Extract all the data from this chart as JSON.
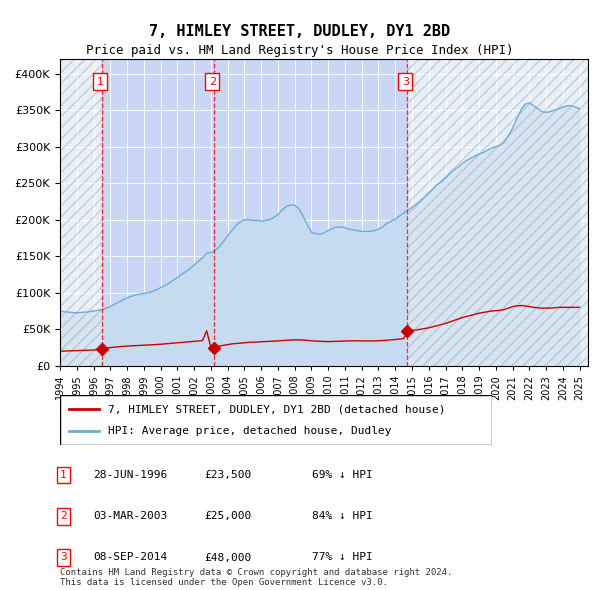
{
  "title": "7, HIMLEY STREET, DUDLEY, DY1 2BD",
  "subtitle": "Price paid vs. HM Land Registry's House Price Index (HPI)",
  "ylabel_ticks": [
    "£0",
    "£50K",
    "£100K",
    "£150K",
    "£200K",
    "£250K",
    "£300K",
    "£350K",
    "£400K"
  ],
  "ytick_values": [
    0,
    50000,
    100000,
    150000,
    200000,
    250000,
    300000,
    350000,
    400000
  ],
  "ylim": [
    0,
    420000
  ],
  "xlim_start": 1994.0,
  "xlim_end": 2025.5,
  "hpi_color": "#6baed6",
  "hpi_fill_color": "#c6dbef",
  "price_color": "#cc0000",
  "marker_color": "#cc0000",
  "dashed_line_color": "#ff0000",
  "background_color": "#dce9f5",
  "plot_bg_color": "#dce9f5",
  "legend_box_color": "#ffffff",
  "transaction_dates": [
    1996.49,
    2003.17,
    2014.69
  ],
  "transaction_prices": [
    23500,
    25000,
    48000
  ],
  "transaction_labels": [
    "1",
    "2",
    "3"
  ],
  "legend_line1": "7, HIMLEY STREET, DUDLEY, DY1 2BD (detached house)",
  "legend_line2": "HPI: Average price, detached house, Dudley",
  "table_rows": [
    [
      "1",
      "28-JUN-1996",
      "£23,500",
      "69% ↓ HPI"
    ],
    [
      "2",
      "03-MAR-2003",
      "£25,000",
      "84% ↓ HPI"
    ],
    [
      "3",
      "08-SEP-2014",
      "£48,000",
      "77% ↓ HPI"
    ]
  ],
  "footnote": "Contains HM Land Registry data © Crown copyright and database right 2024.\nThis data is licensed under the Open Government Licence v3.0.",
  "hpi_x": [
    1994.0,
    1994.25,
    1994.5,
    1994.75,
    1995.0,
    1995.25,
    1995.5,
    1995.75,
    1996.0,
    1996.25,
    1996.5,
    1996.75,
    1997.0,
    1997.25,
    1997.5,
    1997.75,
    1998.0,
    1998.25,
    1998.5,
    1998.75,
    1999.0,
    1999.25,
    1999.5,
    1999.75,
    2000.0,
    2000.25,
    2000.5,
    2000.75,
    2001.0,
    2001.25,
    2001.5,
    2001.75,
    2002.0,
    2002.25,
    2002.5,
    2002.75,
    2003.0,
    2003.25,
    2003.5,
    2003.75,
    2004.0,
    2004.25,
    2004.5,
    2004.75,
    2005.0,
    2005.25,
    2005.5,
    2005.75,
    2006.0,
    2006.25,
    2006.5,
    2006.75,
    2007.0,
    2007.25,
    2007.5,
    2007.75,
    2008.0,
    2008.25,
    2008.5,
    2008.75,
    2009.0,
    2009.25,
    2009.5,
    2009.75,
    2010.0,
    2010.25,
    2010.5,
    2010.75,
    2011.0,
    2011.25,
    2011.5,
    2011.75,
    2012.0,
    2012.25,
    2012.5,
    2012.75,
    2013.0,
    2013.25,
    2013.5,
    2013.75,
    2014.0,
    2014.25,
    2014.5,
    2014.75,
    2015.0,
    2015.25,
    2015.5,
    2015.75,
    2016.0,
    2016.25,
    2016.5,
    2016.75,
    2017.0,
    2017.25,
    2017.5,
    2017.75,
    2018.0,
    2018.25,
    2018.5,
    2018.75,
    2019.0,
    2019.25,
    2019.5,
    2019.75,
    2020.0,
    2020.25,
    2020.5,
    2020.75,
    2021.0,
    2021.25,
    2021.5,
    2021.75,
    2022.0,
    2022.25,
    2022.5,
    2022.75,
    2023.0,
    2023.25,
    2023.5,
    2023.75,
    2024.0,
    2024.25,
    2024.5,
    2024.75,
    2025.0
  ],
  "hpi_y": [
    75000,
    74000,
    73500,
    73000,
    72500,
    73000,
    73500,
    74000,
    75000,
    76000,
    77000,
    79000,
    81000,
    84000,
    87000,
    90000,
    93000,
    95000,
    97000,
    98000,
    99000,
    100000,
    102000,
    104000,
    107000,
    110000,
    113000,
    117000,
    121000,
    125000,
    129000,
    133000,
    138000,
    143000,
    148000,
    154000,
    155000,
    158000,
    163000,
    170000,
    178000,
    185000,
    192000,
    197000,
    200000,
    200000,
    199000,
    199000,
    198000,
    199000,
    200000,
    203000,
    207000,
    213000,
    218000,
    220000,
    220000,
    215000,
    205000,
    193000,
    183000,
    181000,
    180000,
    182000,
    185000,
    188000,
    190000,
    190000,
    189000,
    187000,
    186000,
    185000,
    184000,
    184000,
    184000,
    185000,
    187000,
    190000,
    195000,
    198000,
    201000,
    205000,
    209000,
    213000,
    217000,
    221000,
    226000,
    231000,
    237000,
    242000,
    248000,
    252000,
    257000,
    263000,
    268000,
    272000,
    277000,
    281000,
    284000,
    287000,
    290000,
    292000,
    295000,
    298000,
    300000,
    302000,
    306000,
    315000,
    325000,
    338000,
    350000,
    358000,
    360000,
    356000,
    352000,
    348000,
    347000,
    348000,
    350000,
    352000,
    354000,
    356000,
    356000,
    354000,
    352000
  ],
  "price_x": [
    1994.0,
    1994.25,
    1994.5,
    1994.75,
    1995.0,
    1995.25,
    1995.5,
    1995.75,
    1996.0,
    1996.25,
    1996.5,
    1996.75,
    1997.0,
    1997.25,
    1997.5,
    1997.75,
    1998.0,
    1998.25,
    1998.5,
    1998.75,
    1999.0,
    1999.25,
    1999.5,
    1999.75,
    2000.0,
    2000.25,
    2000.5,
    2000.75,
    2001.0,
    2001.25,
    2001.5,
    2001.75,
    2002.0,
    2002.25,
    2002.5,
    2002.75,
    2003.0,
    2003.25,
    2003.5,
    2003.75,
    2004.0,
    2004.25,
    2004.5,
    2004.75,
    2005.0,
    2005.25,
    2005.5,
    2005.75,
    2006.0,
    2006.25,
    2006.5,
    2006.75,
    2007.0,
    2007.25,
    2007.5,
    2007.75,
    2008.0,
    2008.25,
    2008.5,
    2008.75,
    2009.0,
    2009.25,
    2009.5,
    2009.75,
    2010.0,
    2010.25,
    2010.5,
    2010.75,
    2011.0,
    2011.25,
    2011.5,
    2011.75,
    2012.0,
    2012.25,
    2012.5,
    2012.75,
    2013.0,
    2013.25,
    2013.5,
    2013.75,
    2014.0,
    2014.25,
    2014.5,
    2014.75,
    2015.0,
    2015.25,
    2015.5,
    2015.75,
    2016.0,
    2016.25,
    2016.5,
    2016.75,
    2017.0,
    2017.25,
    2017.5,
    2017.75,
    2018.0,
    2018.25,
    2018.5,
    2018.75,
    2019.0,
    2019.25,
    2019.5,
    2019.75,
    2020.0,
    2020.25,
    2020.5,
    2020.75,
    2021.0,
    2021.25,
    2021.5,
    2021.75,
    2022.0,
    2022.25,
    2022.5,
    2022.75,
    2023.0,
    2023.25,
    2023.5,
    2023.75,
    2024.0,
    2024.25,
    2024.5,
    2024.75,
    2025.0
  ],
  "price_y": [
    20000,
    20200,
    20400,
    20600,
    20800,
    21000,
    21200,
    21400,
    21600,
    22000,
    23500,
    24000,
    25000,
    25500,
    26000,
    26500,
    27000,
    27300,
    27600,
    27900,
    28200,
    28500,
    28800,
    29100,
    29500,
    30000,
    30500,
    31000,
    31500,
    32000,
    32500,
    33000,
    33500,
    34000,
    34500,
    48000,
    25000,
    26000,
    27000,
    28000,
    29000,
    30000,
    30500,
    31000,
    31500,
    32000,
    32300,
    32600,
    32900,
    33200,
    33500,
    33800,
    34100,
    34500,
    34900,
    35300,
    35500,
    35500,
    35300,
    34800,
    34200,
    33800,
    33500,
    33300,
    33200,
    33300,
    33500,
    33700,
    33900,
    34100,
    34200,
    34200,
    34100,
    34000,
    34000,
    34100,
    34300,
    34600,
    35000,
    35500,
    36000,
    36600,
    37200,
    48000,
    48500,
    49000,
    50000,
    51000,
    52000,
    53500,
    55000,
    56500,
    58000,
    60000,
    62000,
    64000,
    66000,
    67500,
    69000,
    70500,
    72000,
    73000,
    74000,
    75000,
    75500,
    76000,
    77000,
    79000,
    81000,
    82000,
    82500,
    82000,
    81000,
    80000,
    79500,
    79000,
    79000,
    79000,
    79500,
    80000,
    80000,
    80000,
    80000,
    80000,
    80000
  ]
}
